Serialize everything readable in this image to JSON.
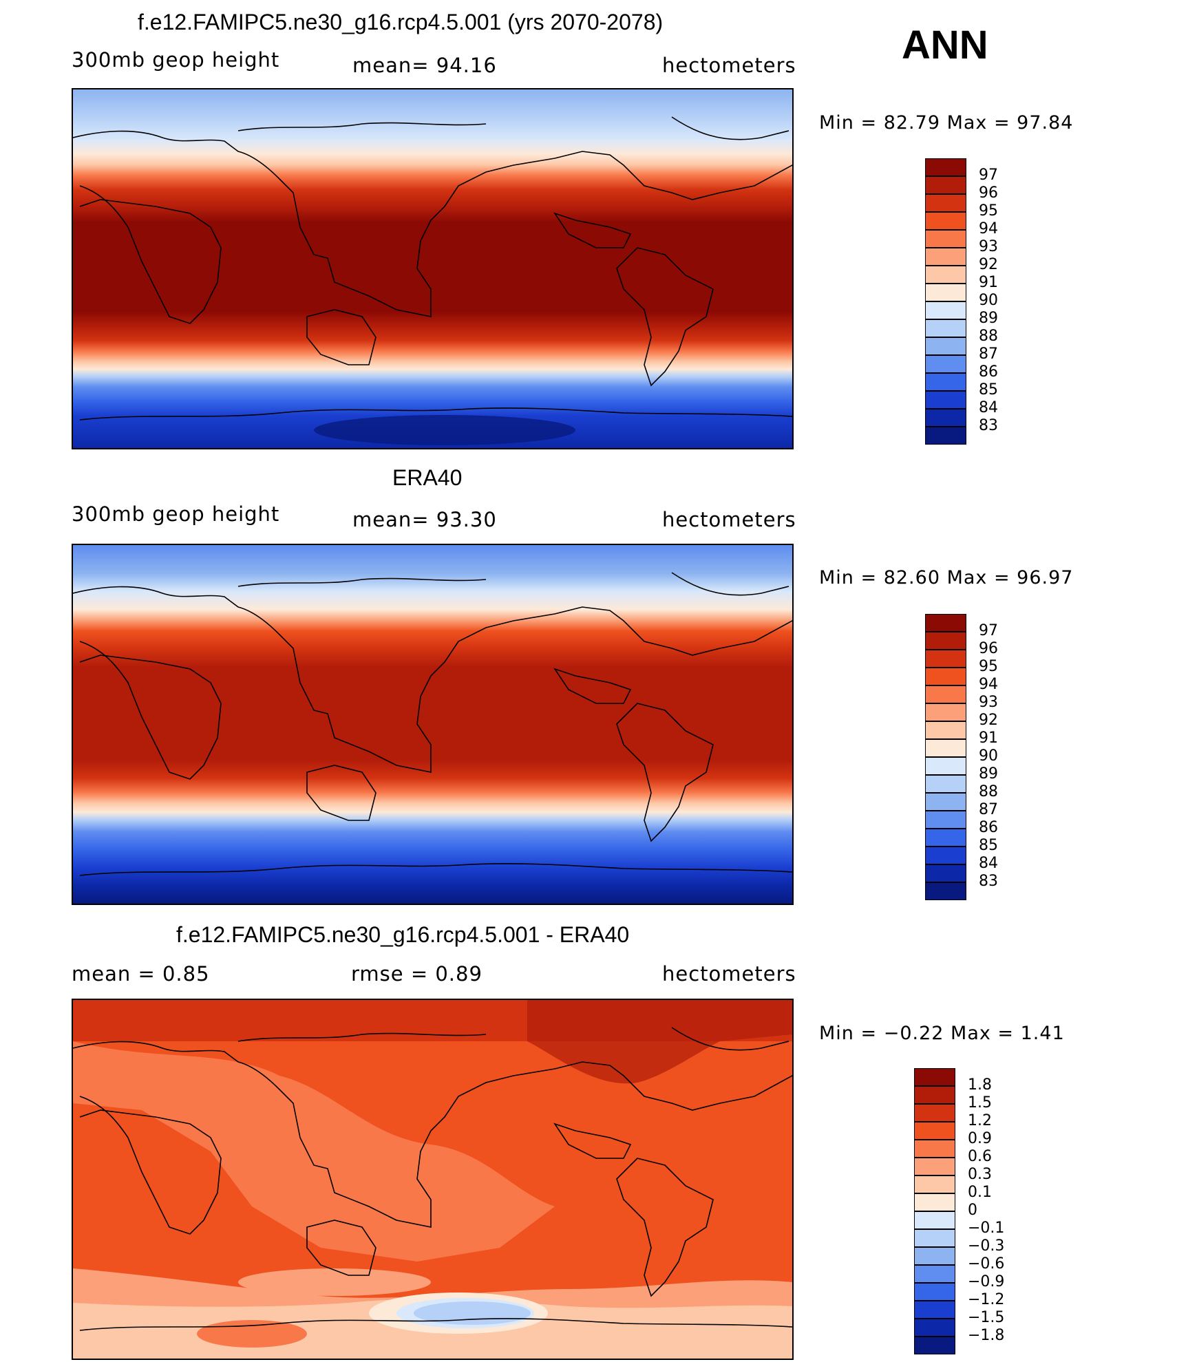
{
  "page": {
    "season": "ANN"
  },
  "panels": [
    {
      "title": "f.e12.FAMIPC5.ne30_g16.rcp4.5.001 (yrs 2070-2078)",
      "left_label": "300mb  geop  height",
      "center_label": "mean=   94.16",
      "right_label": "hectometers",
      "minmax": "Min  =    82.79  Max  =    97.84",
      "colorbar": {
        "labels": [
          "97",
          "96",
          "95",
          "94",
          "93",
          "92",
          "91",
          "90",
          "89",
          "88",
          "87",
          "86",
          "85",
          "84",
          "83"
        ],
        "colors": [
          "#8c0a04",
          "#b21d0a",
          "#d33311",
          "#ef521f",
          "#f8784a",
          "#fba078",
          "#fdc8a8",
          "#fde9d8",
          "#d9e8fa",
          "#b6d1f7",
          "#8db4f0",
          "#5f8df0",
          "#3565e8",
          "#1a3fd0",
          "#0c28a8",
          "#081a80"
        ]
      },
      "map_fill": "band_model"
    },
    {
      "title": "ERA40",
      "left_label": "300mb  geop  height",
      "center_label": "mean=   93.30",
      "right_label": "hectometers",
      "minmax": "Min  =    82.60  Max  =    96.97",
      "colorbar": {
        "labels": [
          "97",
          "96",
          "95",
          "94",
          "93",
          "92",
          "91",
          "90",
          "89",
          "88",
          "87",
          "86",
          "85",
          "84",
          "83"
        ],
        "colors": [
          "#8c0a04",
          "#b21d0a",
          "#d33311",
          "#ef521f",
          "#f8784a",
          "#fba078",
          "#fdc8a8",
          "#fde9d8",
          "#d9e8fa",
          "#b6d1f7",
          "#8db4f0",
          "#5f8df0",
          "#3565e8",
          "#1a3fd0",
          "#0c28a8",
          "#081a80"
        ]
      },
      "map_fill": "band_obs"
    },
    {
      "title": "f.e12.FAMIPC5.ne30_g16.rcp4.5.001 - ERA40",
      "left_label": "mean  =      0.85",
      "center_label": "rmse  =      0.89",
      "right_label": "hectometers",
      "minmax": "Min  =    −0.22  Max  =      1.41",
      "colorbar": {
        "labels": [
          "1.8",
          "1.5",
          "1.2",
          "0.9",
          "0.6",
          "0.3",
          "0.1",
          "0",
          "−0.1",
          "−0.3",
          "−0.6",
          "−0.9",
          "−1.2",
          "−1.5",
          "−1.8"
        ],
        "colors": [
          "#8c0a04",
          "#b21d0a",
          "#d33311",
          "#ef521f",
          "#f8784a",
          "#fba078",
          "#fdc8a8",
          "#fde9d8",
          "#d9e8fa",
          "#b6d1f7",
          "#8db4f0",
          "#5f8df0",
          "#3565e8",
          "#1a3fd0",
          "#0c28a8",
          "#081a80"
        ]
      },
      "map_fill": "diff"
    }
  ]
}
